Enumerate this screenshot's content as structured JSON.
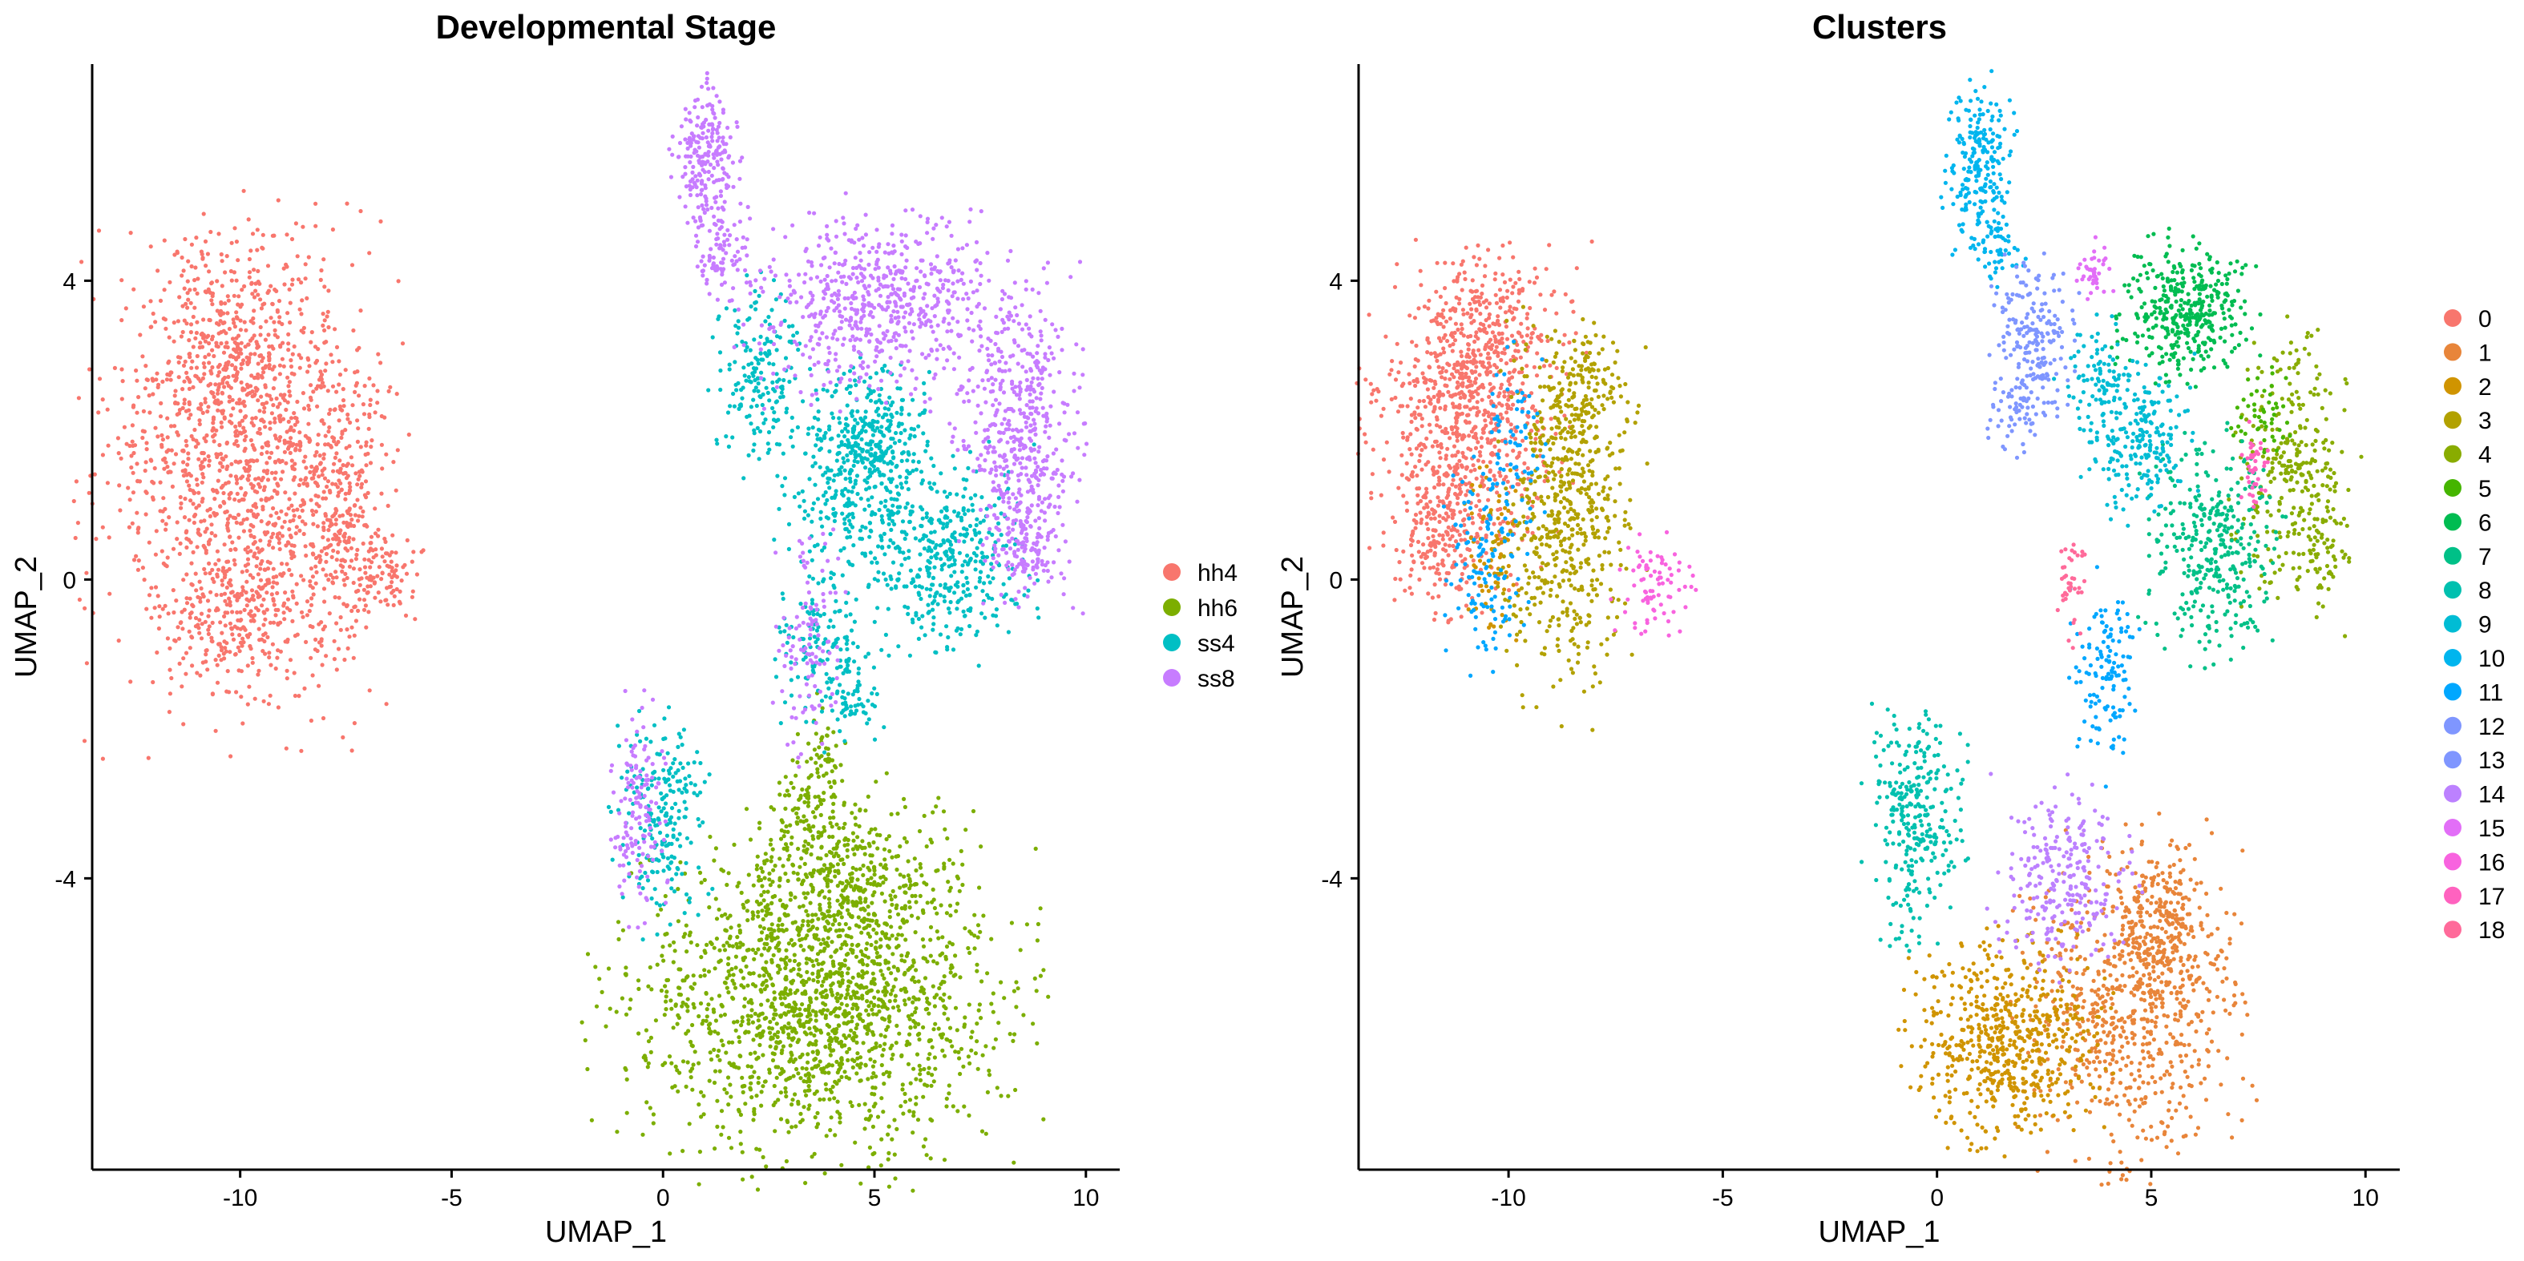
{
  "chart_data": [
    {
      "type": "scatter",
      "title": "Developmental Stage",
      "xlabel": "UMAP_1",
      "ylabel": "UMAP_2",
      "xlim": [
        -13.5,
        10.8
      ],
      "ylim": [
        -7.9,
        6.9
      ],
      "xticks": [
        -10,
        -5,
        0,
        5,
        10
      ],
      "xtick_labels": [
        "-10",
        "-5",
        "0",
        "5",
        "10"
      ],
      "yticks": [
        -4,
        0,
        4
      ],
      "ytick_labels": [
        "-4",
        "0",
        "4"
      ],
      "grid": false,
      "legend_position": "right",
      "legend": [
        {
          "label": "hh4",
          "color": "#F8766D"
        },
        {
          "label": "hh6",
          "color": "#7CAE00"
        },
        {
          "label": "ss4",
          "color": "#00BFC4"
        },
        {
          "label": "ss8",
          "color": "#C77CFF"
        }
      ],
      "series": [
        {
          "name": "hh4",
          "color": "#F8766D",
          "blobs": [
            {
              "cx": -9.9,
              "cy": 1.4,
              "rx": 2.2,
              "ry": 2.1,
              "n": 1300
            },
            {
              "cx": -10.2,
              "cy": 3.1,
              "rx": 1.3,
              "ry": 0.9,
              "n": 300
            },
            {
              "cx": -7.6,
              "cy": 1.0,
              "rx": 0.7,
              "ry": 1.2,
              "n": 200
            },
            {
              "cx": -6.6,
              "cy": 0.1,
              "rx": 0.6,
              "ry": 0.4,
              "n": 80
            },
            {
              "cx": -10.0,
              "cy": -0.5,
              "rx": 1.3,
              "ry": 0.6,
              "n": 180
            }
          ]
        },
        {
          "name": "hh6",
          "color": "#7CAE00",
          "blobs": [
            {
              "cx": 3.6,
              "cy": -5.8,
              "rx": 3.0,
              "ry": 1.3,
              "n": 1500
            },
            {
              "cx": 4.3,
              "cy": -4.2,
              "rx": 1.8,
              "ry": 0.9,
              "n": 500
            },
            {
              "cx": 3.5,
              "cy": -3.0,
              "rx": 0.6,
              "ry": 0.6,
              "n": 110
            },
            {
              "cx": 3.8,
              "cy": -2.2,
              "rx": 0.3,
              "ry": 0.4,
              "n": 30
            }
          ]
        },
        {
          "name": "ss4",
          "color": "#00BFC4",
          "blobs": [
            {
              "cx": 5.0,
              "cy": 1.9,
              "rx": 0.8,
              "ry": 0.7,
              "n": 320
            },
            {
              "cx": 6.6,
              "cy": 0.3,
              "rx": 1.3,
              "ry": 0.9,
              "n": 420
            },
            {
              "cx": 2.3,
              "cy": 2.7,
              "rx": 0.7,
              "ry": 0.8,
              "n": 180
            },
            {
              "cx": 4.2,
              "cy": 1.2,
              "rx": 0.9,
              "ry": 1.0,
              "n": 180
            },
            {
              "cx": 3.7,
              "cy": -0.9,
              "rx": 0.6,
              "ry": 0.8,
              "n": 140
            },
            {
              "cx": 4.6,
              "cy": -1.6,
              "rx": 0.4,
              "ry": 0.4,
              "n": 50
            },
            {
              "cx": 0.0,
              "cy": -3.2,
              "rx": 0.7,
              "ry": 0.9,
              "n": 220
            }
          ]
        },
        {
          "name": "ss8",
          "color": "#C77CFF",
          "blobs": [
            {
              "cx": 1.0,
              "cy": 5.6,
              "rx": 0.5,
              "ry": 0.7,
              "n": 220
            },
            {
              "cx": 1.5,
              "cy": 4.3,
              "rx": 0.5,
              "ry": 0.4,
              "n": 80
            },
            {
              "cx": 5.1,
              "cy": 3.7,
              "rx": 1.9,
              "ry": 0.8,
              "n": 620
            },
            {
              "cx": 8.4,
              "cy": 1.9,
              "rx": 0.9,
              "ry": 1.3,
              "n": 480
            },
            {
              "cx": 8.6,
              "cy": 0.5,
              "rx": 0.6,
              "ry": 0.5,
              "n": 120
            },
            {
              "cx": 3.5,
              "cy": -0.8,
              "rx": 0.5,
              "ry": 1.0,
              "n": 110
            },
            {
              "cx": -0.6,
              "cy": -3.2,
              "rx": 0.4,
              "ry": 1.0,
              "n": 140
            }
          ]
        }
      ]
    },
    {
      "type": "scatter",
      "title": "Clusters",
      "xlabel": "UMAP_1",
      "ylabel": "UMAP_2",
      "xlim": [
        -13.5,
        10.8
      ],
      "ylim": [
        -7.9,
        6.9
      ],
      "xticks": [
        -10,
        -5,
        0,
        5,
        10
      ],
      "xtick_labels": [
        "-10",
        "-5",
        "0",
        "5",
        "10"
      ],
      "yticks": [
        -4,
        0,
        4
      ],
      "ytick_labels": [
        "-4",
        "0",
        "4"
      ],
      "grid": false,
      "legend_position": "right",
      "legend": [
        {
          "label": "0",
          "color": "#F8766D"
        },
        {
          "label": "1",
          "color": "#E8853A"
        },
        {
          "label": "2",
          "color": "#D09400"
        },
        {
          "label": "3",
          "color": "#B2A100"
        },
        {
          "label": "4",
          "color": "#89AC00"
        },
        {
          "label": "5",
          "color": "#45B500"
        },
        {
          "label": "6",
          "color": "#00BC51"
        },
        {
          "label": "7",
          "color": "#00C087"
        },
        {
          "label": "8",
          "color": "#00C0AF"
        },
        {
          "label": "9",
          "color": "#00BCD4"
        },
        {
          "label": "10",
          "color": "#00B5EE"
        },
        {
          "label": "11",
          "color": "#00A7FF"
        },
        {
          "label": "12",
          "color": "#7F96FF"
        },
        {
          "label": "13",
          "color": "#7F96FF"
        },
        {
          "label": "14",
          "color": "#BC81FF"
        },
        {
          "label": "15",
          "color": "#E26EF7"
        },
        {
          "label": "16",
          "color": "#F863DF"
        },
        {
          "label": "17",
          "color": "#FF62BF"
        },
        {
          "label": "18",
          "color": "#FF6A9A"
        }
      ],
      "series": [
        {
          "name": "0",
          "color": "#F8766D",
          "blobs": [
            {
              "cx": -11.0,
              "cy": 2.2,
              "rx": 1.4,
              "ry": 1.3,
              "n": 700
            },
            {
              "cx": -10.2,
              "cy": 3.3,
              "rx": 1.2,
              "ry": 0.7,
              "n": 220
            },
            {
              "cx": -11.5,
              "cy": 0.6,
              "rx": 0.8,
              "ry": 0.8,
              "n": 200
            }
          ]
        },
        {
          "name": "1",
          "color": "#E8853A",
          "blobs": [
            {
              "cx": 4.6,
              "cy": -5.6,
              "rx": 1.6,
              "ry": 1.4,
              "n": 700
            },
            {
              "cx": 5.3,
              "cy": -4.6,
              "rx": 0.8,
              "ry": 0.6,
              "n": 200
            }
          ]
        },
        {
          "name": "2",
          "color": "#D09400",
          "blobs": [
            {
              "cx": 1.6,
              "cy": -6.2,
              "rx": 1.4,
              "ry": 0.9,
              "n": 600
            },
            {
              "cx": -10.4,
              "cy": 0.5,
              "rx": 0.5,
              "ry": 0.8,
              "n": 80
            }
          ]
        },
        {
          "name": "3",
          "color": "#B2A100",
          "blobs": [
            {
              "cx": -8.6,
              "cy": 0.9,
              "rx": 1.0,
              "ry": 1.6,
              "n": 560
            },
            {
              "cx": -8.3,
              "cy": 2.6,
              "rx": 0.6,
              "ry": 0.5,
              "n": 120
            }
          ]
        },
        {
          "name": "4",
          "color": "#89AC00",
          "blobs": [
            {
              "cx": 8.3,
              "cy": 1.4,
              "rx": 0.9,
              "ry": 1.2,
              "n": 280
            },
            {
              "cx": 9.0,
              "cy": 0.3,
              "rx": 0.4,
              "ry": 0.5,
              "n": 50
            }
          ]
        },
        {
          "name": "5",
          "color": "#45B500",
          "blobs": [
            {
              "cx": 7.6,
              "cy": 2.2,
              "rx": 0.4,
              "ry": 0.4,
              "n": 50
            }
          ]
        },
        {
          "name": "6",
          "color": "#00BC51",
          "blobs": [
            {
              "cx": 5.8,
              "cy": 3.6,
              "rx": 1.0,
              "ry": 0.6,
              "n": 380
            }
          ]
        },
        {
          "name": "7",
          "color": "#00C087",
          "blobs": [
            {
              "cx": 6.5,
              "cy": 0.4,
              "rx": 1.0,
              "ry": 1.0,
              "n": 340
            }
          ]
        },
        {
          "name": "8",
          "color": "#00C0AF",
          "blobs": [
            {
              "cx": -0.5,
              "cy": -3.2,
              "rx": 0.7,
              "ry": 1.0,
              "n": 290
            }
          ]
        },
        {
          "name": "9",
          "color": "#00BCD4",
          "blobs": [
            {
              "cx": 4.8,
              "cy": 1.9,
              "rx": 0.8,
              "ry": 0.7,
              "n": 220
            },
            {
              "cx": 3.8,
              "cy": 2.7,
              "rx": 0.6,
              "ry": 0.5,
              "n": 80
            }
          ]
        },
        {
          "name": "10",
          "color": "#00B5EE",
          "blobs": [
            {
              "cx": 1.0,
              "cy": 5.6,
              "rx": 0.5,
              "ry": 0.7,
              "n": 220
            },
            {
              "cx": 1.4,
              "cy": 4.4,
              "rx": 0.4,
              "ry": 0.3,
              "n": 50
            }
          ]
        },
        {
          "name": "11",
          "color": "#00A7FF",
          "blobs": [
            {
              "cx": 3.9,
              "cy": -1.3,
              "rx": 0.5,
              "ry": 0.8,
              "n": 130
            },
            {
              "cx": -10.5,
              "cy": 0.2,
              "rx": 0.6,
              "ry": 0.9,
              "n": 130
            }
          ]
        },
        {
          "name": "12",
          "color": "#00A7FF",
          "blobs": [
            {
              "cx": -9.8,
              "cy": 1.9,
              "rx": 0.5,
              "ry": 0.7,
              "n": 60
            }
          ]
        },
        {
          "name": "13",
          "color": "#7F96FF",
          "blobs": [
            {
              "cx": 2.3,
              "cy": 3.2,
              "rx": 0.6,
              "ry": 0.7,
              "n": 200
            },
            {
              "cx": 1.9,
              "cy": 2.2,
              "rx": 0.4,
              "ry": 0.4,
              "n": 50
            }
          ]
        },
        {
          "name": "14",
          "color": "#BC81FF",
          "blobs": [
            {
              "cx": 3.0,
              "cy": -4.0,
              "rx": 1.0,
              "ry": 0.8,
              "n": 260
            }
          ]
        },
        {
          "name": "15",
          "color": "#E26EF7",
          "blobs": [
            {
              "cx": 3.7,
              "cy": 4.2,
              "rx": 0.3,
              "ry": 0.3,
              "n": 40
            }
          ]
        },
        {
          "name": "16",
          "color": "#F863DF",
          "blobs": [
            {
              "cx": -6.6,
              "cy": -0.1,
              "rx": 0.6,
              "ry": 0.4,
              "n": 80
            }
          ]
        },
        {
          "name": "17",
          "color": "#FF62BF",
          "blobs": [
            {
              "cx": 7.4,
              "cy": 1.5,
              "rx": 0.2,
              "ry": 0.4,
              "n": 40
            }
          ]
        },
        {
          "name": "18",
          "color": "#FF6A9A",
          "blobs": [
            {
              "cx": 3.1,
              "cy": -0.1,
              "rx": 0.2,
              "ry": 0.5,
              "n": 40
            }
          ]
        }
      ]
    }
  ]
}
